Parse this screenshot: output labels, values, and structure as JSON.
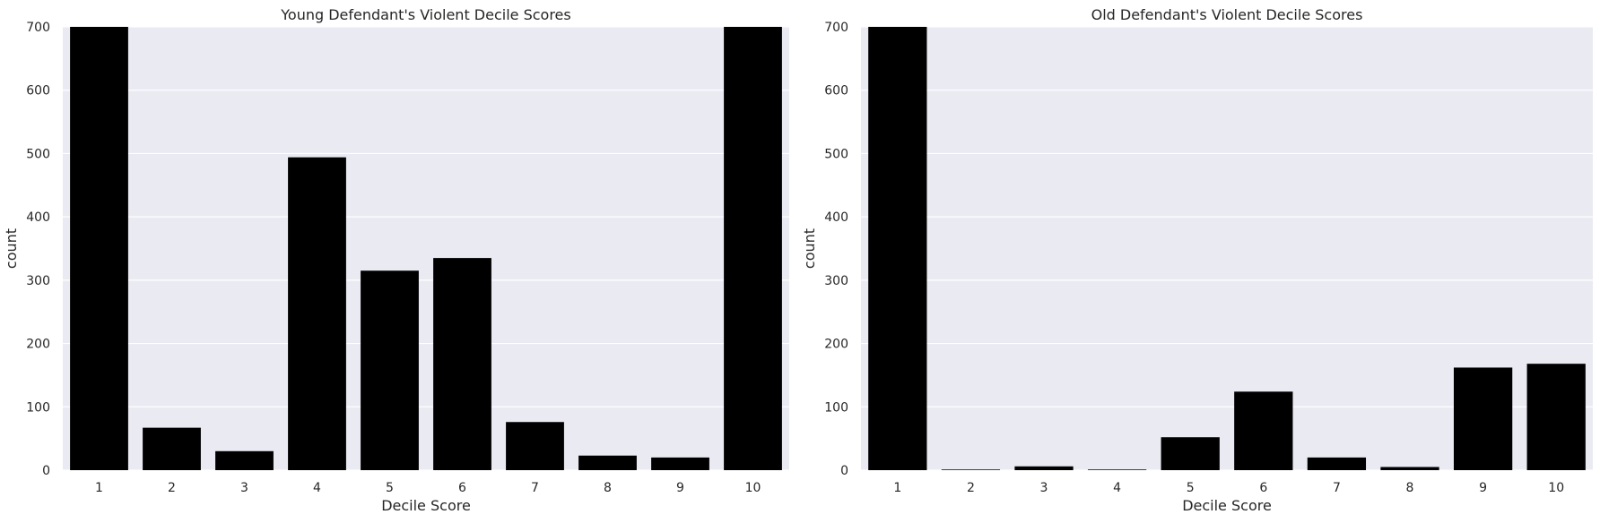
{
  "chart_data": [
    {
      "type": "bar",
      "title": "Young Defendant's Violent Decile Scores",
      "xlabel": "Decile Score",
      "ylabel": "count",
      "categories": [
        "1",
        "2",
        "3",
        "4",
        "5",
        "6",
        "7",
        "8",
        "9",
        "10"
      ],
      "values": [
        700,
        67,
        30,
        494,
        315,
        335,
        76,
        23,
        20,
        700
      ],
      "ylim": [
        0,
        700
      ],
      "yticks": [
        0,
        100,
        200,
        300,
        400,
        500,
        600,
        700
      ],
      "grid": true,
      "bar_color": "#000000",
      "background_color": "#eaeaf2"
    },
    {
      "type": "bar",
      "title": "Old Defendant's Violent Decile Scores",
      "xlabel": "Decile Score",
      "ylabel": "count",
      "categories": [
        "1",
        "2",
        "3",
        "4",
        "5",
        "6",
        "7",
        "8",
        "9",
        "10"
      ],
      "values": [
        700,
        1,
        6,
        1,
        52,
        124,
        20,
        5,
        162,
        168
      ],
      "ylim": [
        0,
        700
      ],
      "yticks": [
        0,
        100,
        200,
        300,
        400,
        500,
        600,
        700
      ],
      "grid": true,
      "bar_color": "#000000",
      "background_color": "#eaeaf2"
    }
  ]
}
